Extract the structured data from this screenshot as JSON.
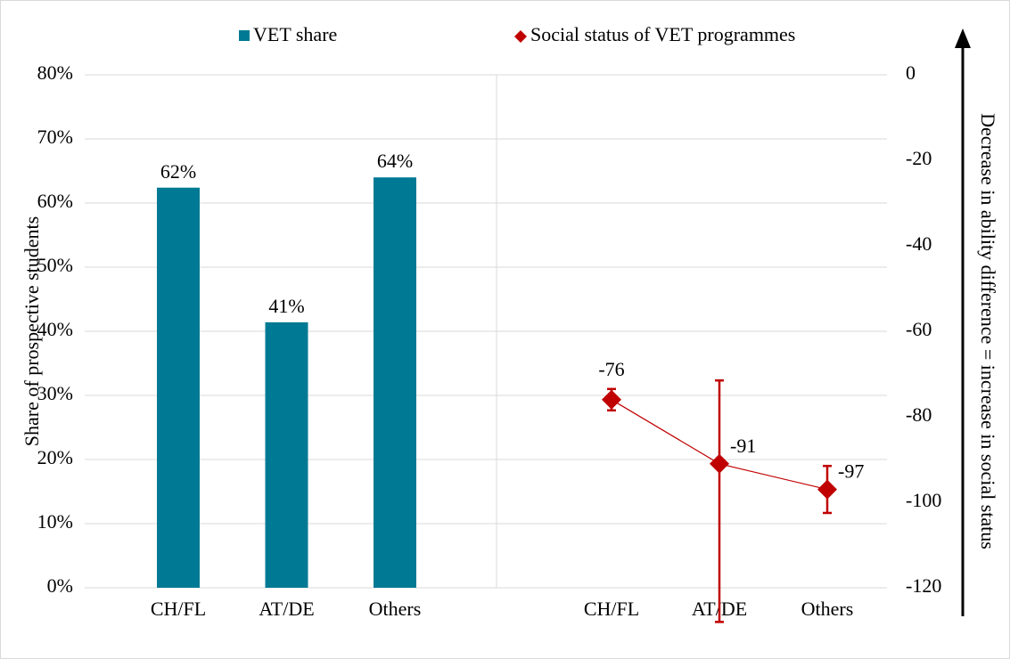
{
  "chart_data": [
    {
      "type": "bar",
      "ylabel": "Share of prospective students",
      "categories": [
        "CH/FL",
        "AT/DE",
        "Others"
      ],
      "series": [
        {
          "name": "VET share",
          "color": "#007a94",
          "values": [
            62.4,
            41.4,
            64
          ],
          "value_labels": [
            "62%",
            "41%",
            "64%"
          ]
        }
      ],
      "ylim": [
        0,
        80
      ],
      "yticks": [
        {
          "value": 0,
          "label": "0%"
        },
        {
          "value": 10,
          "label": "10%"
        },
        {
          "value": 20,
          "label": "20%"
        },
        {
          "value": 30,
          "label": "30%"
        },
        {
          "value": 40,
          "label": "40%"
        },
        {
          "value": 50,
          "label": "50%"
        },
        {
          "value": 60,
          "label": "60%"
        },
        {
          "value": 70,
          "label": "70%"
        },
        {
          "value": 80,
          "label": "80%"
        }
      ],
      "grid": true
    },
    {
      "type": "line",
      "y2label": "Decrease in ability difference = increase in social status",
      "categories": [
        "CH/FL",
        "AT/DE",
        "Others"
      ],
      "series": [
        {
          "name": "Social status of VET programmes",
          "color": "#c00000",
          "axis": "y2",
          "values": [
            -76,
            -91,
            -97
          ],
          "error_minus": [
            2.5,
            37,
            5.5
          ],
          "error_plus": [
            2.5,
            19.5,
            5.5
          ]
        }
      ],
      "y2lim": [
        -120,
        0
      ],
      "y2ticks": [
        0,
        -20,
        -40,
        -60,
        -80,
        -100,
        -120
      ]
    }
  ]
}
